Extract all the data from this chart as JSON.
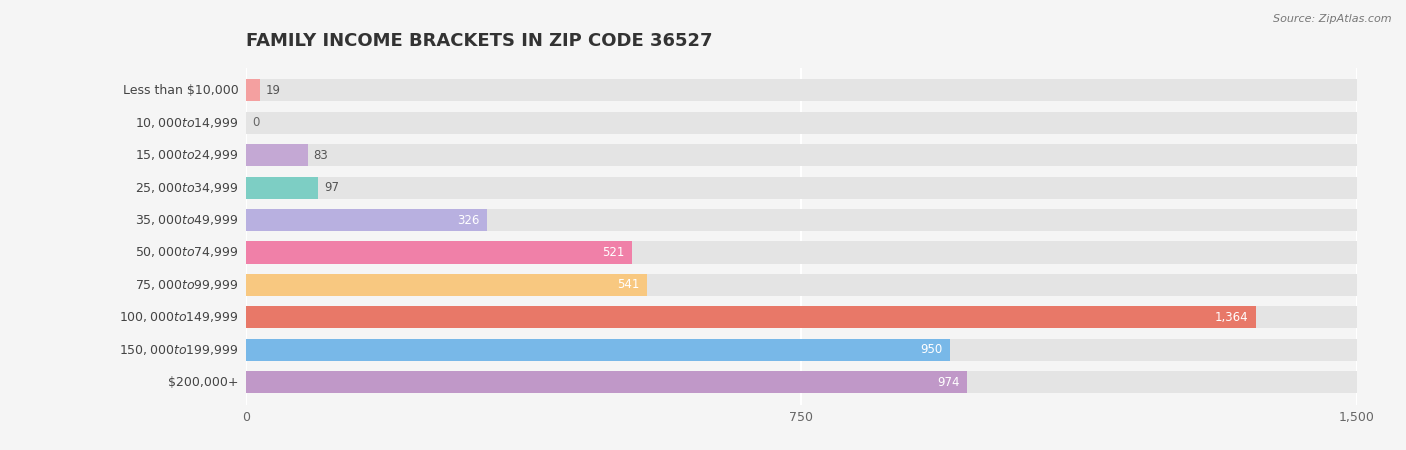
{
  "title": "FAMILY INCOME BRACKETS IN ZIP CODE 36527",
  "source": "Source: ZipAtlas.com",
  "categories": [
    "Less than $10,000",
    "$10,000 to $14,999",
    "$15,000 to $24,999",
    "$25,000 to $34,999",
    "$35,000 to $49,999",
    "$50,000 to $74,999",
    "$75,000 to $99,999",
    "$100,000 to $149,999",
    "$150,000 to $199,999",
    "$200,000+"
  ],
  "values": [
    19,
    0,
    83,
    97,
    326,
    521,
    541,
    1364,
    950,
    974
  ],
  "bar_colors": [
    "#F4A0A0",
    "#A8C4E0",
    "#C4A8D4",
    "#7DCEC4",
    "#B8B0E0",
    "#F080A8",
    "#F8C880",
    "#E87868",
    "#78B8E8",
    "#C098C8"
  ],
  "xlim": [
    0,
    1500
  ],
  "xticks": [
    0,
    750,
    1500
  ],
  "background_color": "#f5f5f5",
  "bar_background_color": "#e4e4e4",
  "title_fontsize": 13,
  "label_fontsize": 9,
  "value_fontsize": 8.5,
  "bar_height": 0.68,
  "value_label_threshold": 100
}
